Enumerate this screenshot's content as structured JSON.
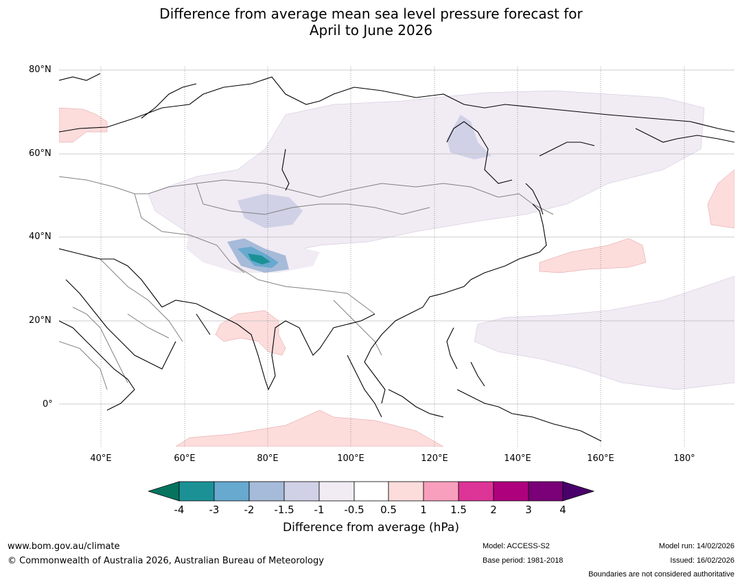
{
  "title_line1": "Difference from average mean sea level pressure forecast for",
  "title_line2": "April to June 2026",
  "map": {
    "lat_labels": [
      "80°N",
      "60°N",
      "40°N",
      "20°N",
      "0°"
    ],
    "lon_labels": [
      "40°E",
      "60°E",
      "80°E",
      "100°E",
      "120°E",
      "140°E",
      "160°E",
      "180°"
    ]
  },
  "colorbar": {
    "title": "Difference from average (hPa)",
    "tick_labels": [
      "-4",
      "-3",
      "-2",
      "-1.5",
      "-1",
      "-0.5",
      "0.5",
      "1",
      "1.5",
      "2",
      "3",
      "4"
    ],
    "colors": [
      "#06735f",
      "#1b9196",
      "#67a9cf",
      "#a6bbd9",
      "#d0d1e6",
      "#f1ebf4",
      "#ffffff",
      "#fddcdc",
      "#f89fbd",
      "#dd3497",
      "#ae017e",
      "#7a0177",
      "#49006a"
    ]
  },
  "footer": {
    "website": "www.bom.gov.au/climate",
    "copyright": "© Commonwealth of Australia 2026, Australian Bureau of Meteorology",
    "model": "Model: ACCESS-S2",
    "base_period": "Base period: 1981-2018",
    "model_run": "Model run: 14/02/2026",
    "issued": "Issued: 16/02/2026",
    "disclaimer": "Boundaries are not considered authoritative"
  }
}
